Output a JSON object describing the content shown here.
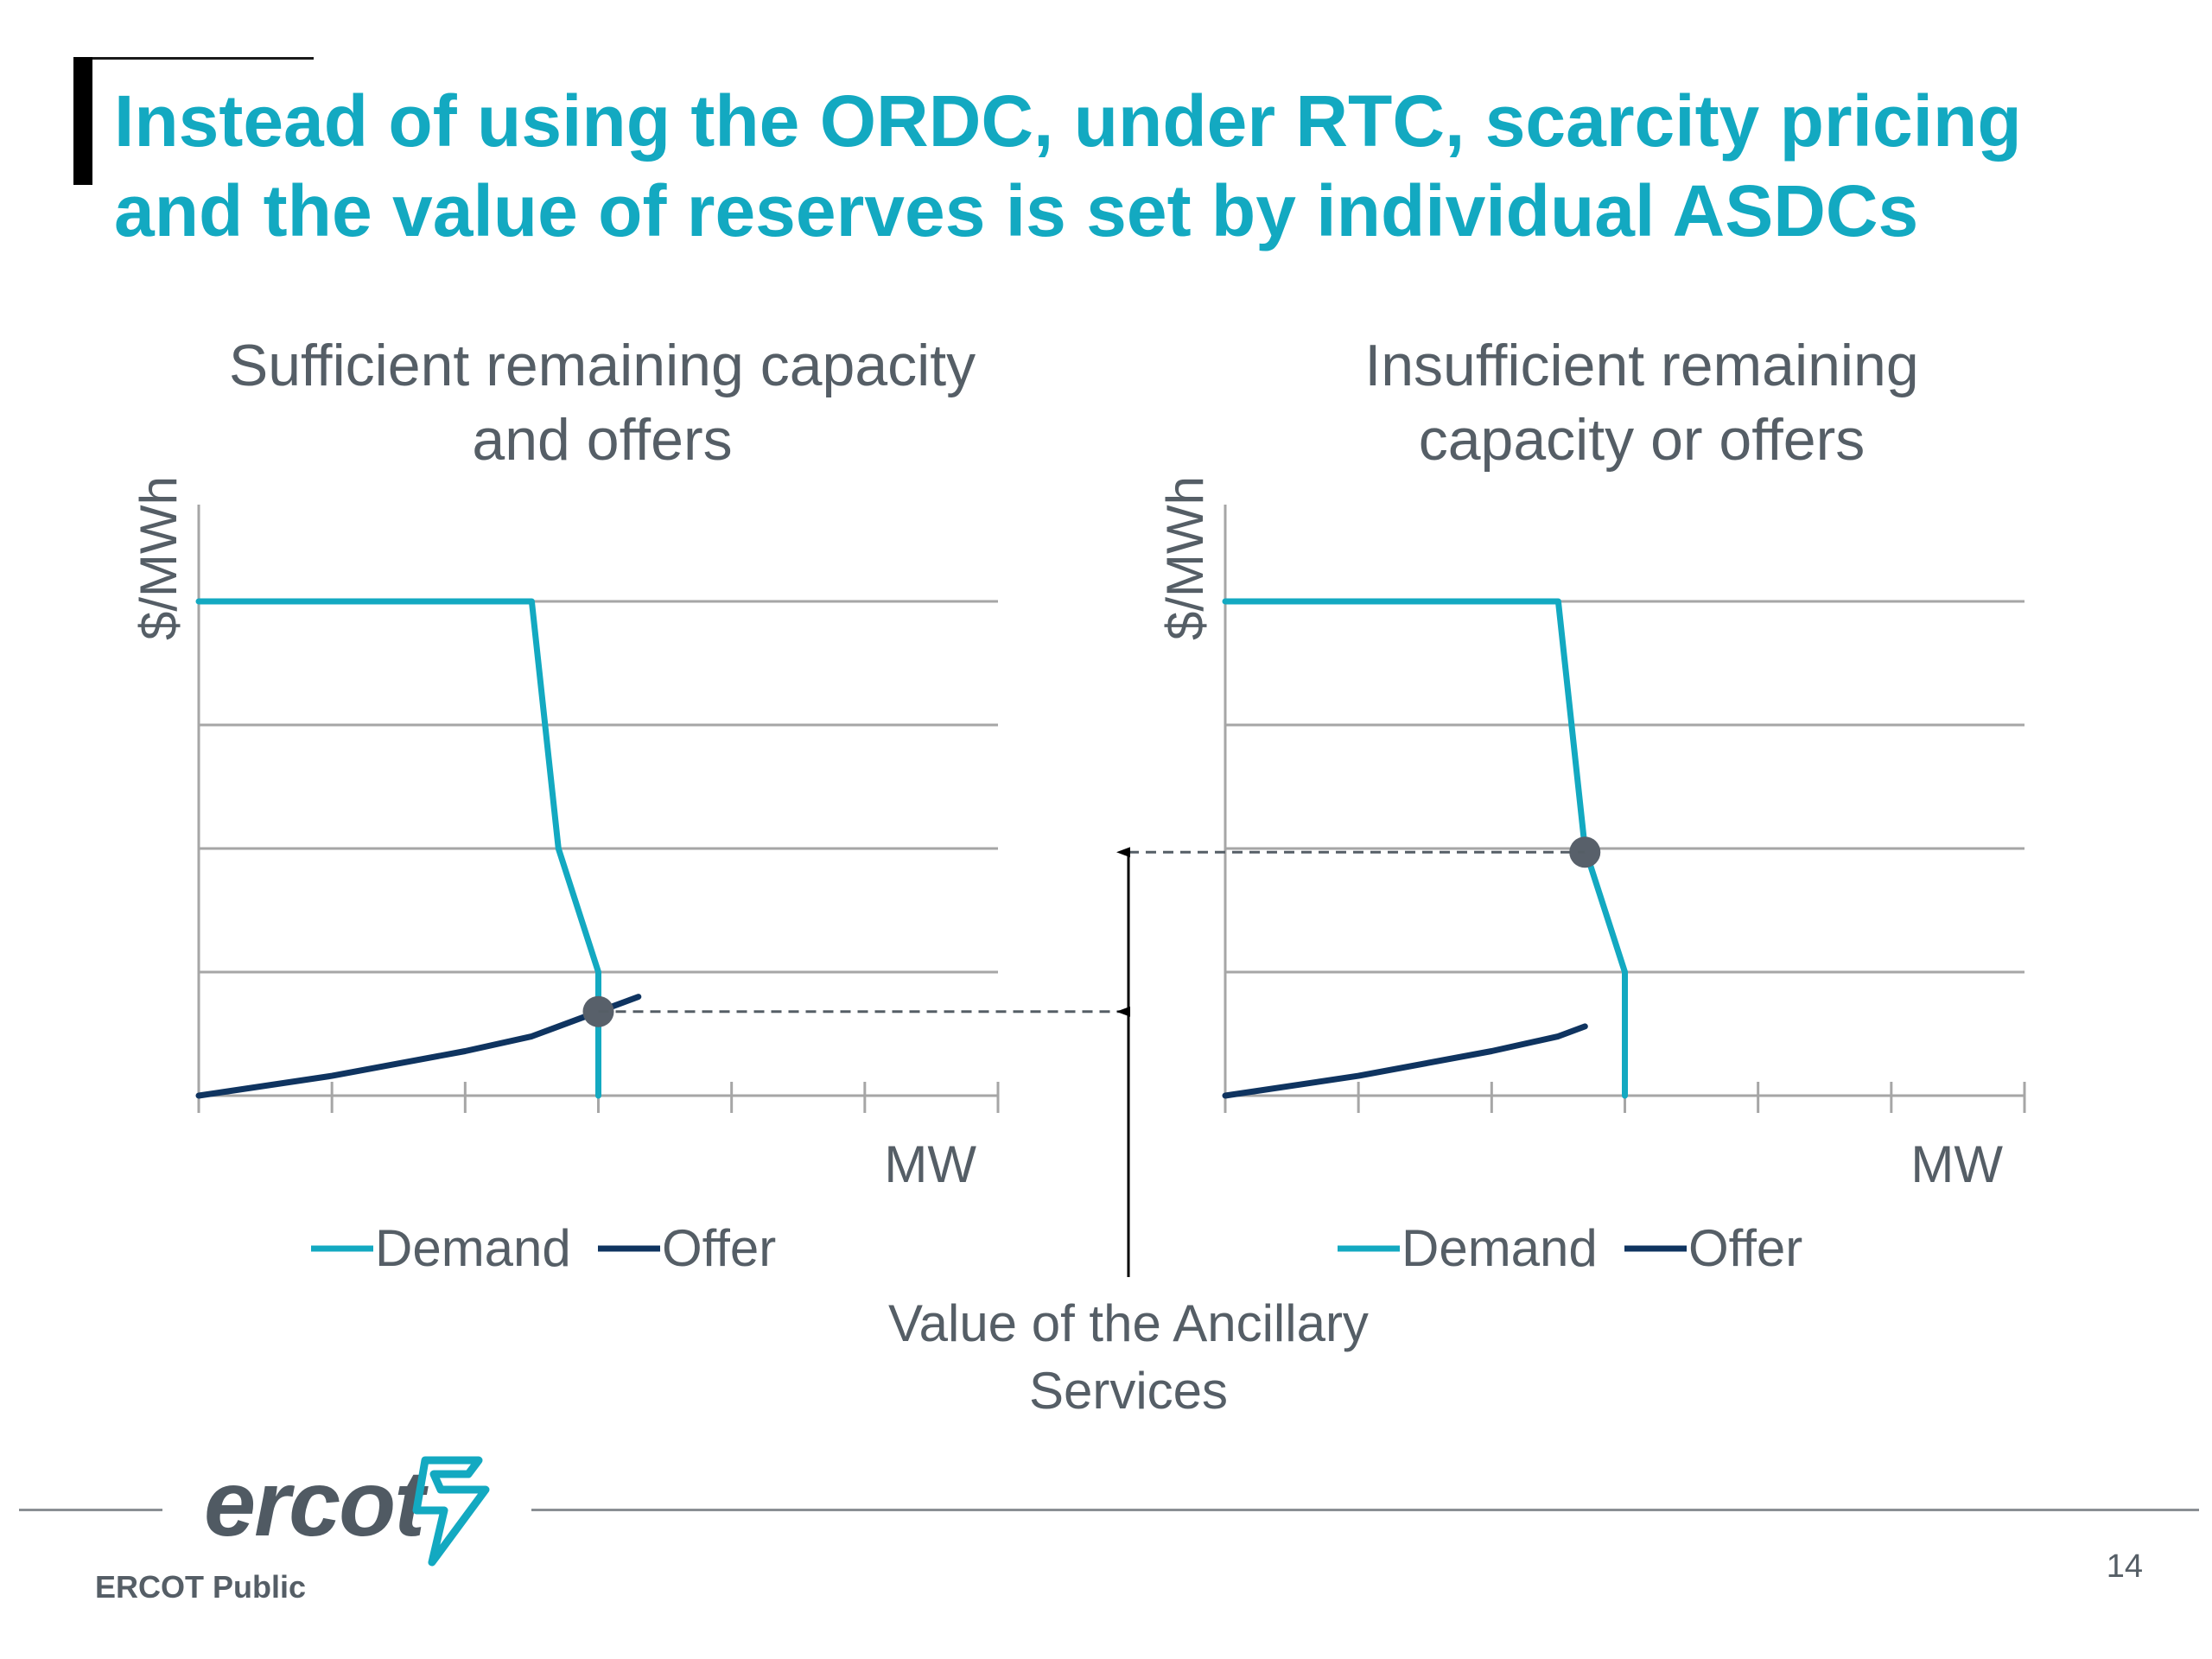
{
  "slide": {
    "title": "Instead of using the ORDC, under RTC, scarcity pricing and the value of reserves is set by individual ASDCs",
    "annotation": "Value of the Ancillary Services",
    "footer": {
      "logo_text": "ercot",
      "classification": "ERCOT Public",
      "page_number": "14"
    }
  },
  "colors": {
    "title": "#13a9c1",
    "demand": "#13a9c1",
    "offer": "#0f3460",
    "marker": "#58606a",
    "grid": "#a6a6a6",
    "text": "#555e66"
  },
  "chart_data": [
    {
      "type": "line",
      "title": "Sufficient remaining capacity and offers",
      "xlabel": "MW",
      "ylabel": "$/MWh",
      "xlim": [
        0,
        6
      ],
      "ylim": [
        0,
        4
      ],
      "grid": true,
      "x_tick_labels": [],
      "y_tick_labels": [],
      "legend_position": "bottom",
      "series": [
        {
          "name": "Demand",
          "points": [
            [
              0,
              4
            ],
            [
              2.5,
              4
            ],
            [
              2.7,
              2
            ],
            [
              3.0,
              1
            ],
            [
              3.0,
              0
            ]
          ]
        },
        {
          "name": "Offer",
          "points": [
            [
              0,
              0
            ],
            [
              1.0,
              0.16
            ],
            [
              2.0,
              0.36
            ],
            [
              2.5,
              0.48
            ],
            [
              3.0,
              0.68
            ],
            [
              3.3,
              0.8
            ]
          ]
        }
      ],
      "intersection": [
        3.0,
        0.68
      ]
    },
    {
      "type": "line",
      "title": "Insufficient remaining capacity or offers",
      "xlabel": "MW",
      "ylabel": "$/MWh",
      "xlim": [
        0,
        6
      ],
      "ylim": [
        0,
        4
      ],
      "grid": true,
      "x_tick_labels": [],
      "y_tick_labels": [],
      "legend_position": "bottom",
      "series": [
        {
          "name": "Demand",
          "points": [
            [
              0,
              4
            ],
            [
              2.5,
              4
            ],
            [
              2.7,
              2
            ],
            [
              3.0,
              1
            ],
            [
              3.0,
              0
            ]
          ]
        },
        {
          "name": "Offer",
          "points": [
            [
              0,
              0
            ],
            [
              1.0,
              0.16
            ],
            [
              2.0,
              0.36
            ],
            [
              2.5,
              0.48
            ],
            [
              2.7,
              0.56
            ]
          ]
        }
      ],
      "intersection": [
        2.7,
        1.97
      ]
    }
  ]
}
